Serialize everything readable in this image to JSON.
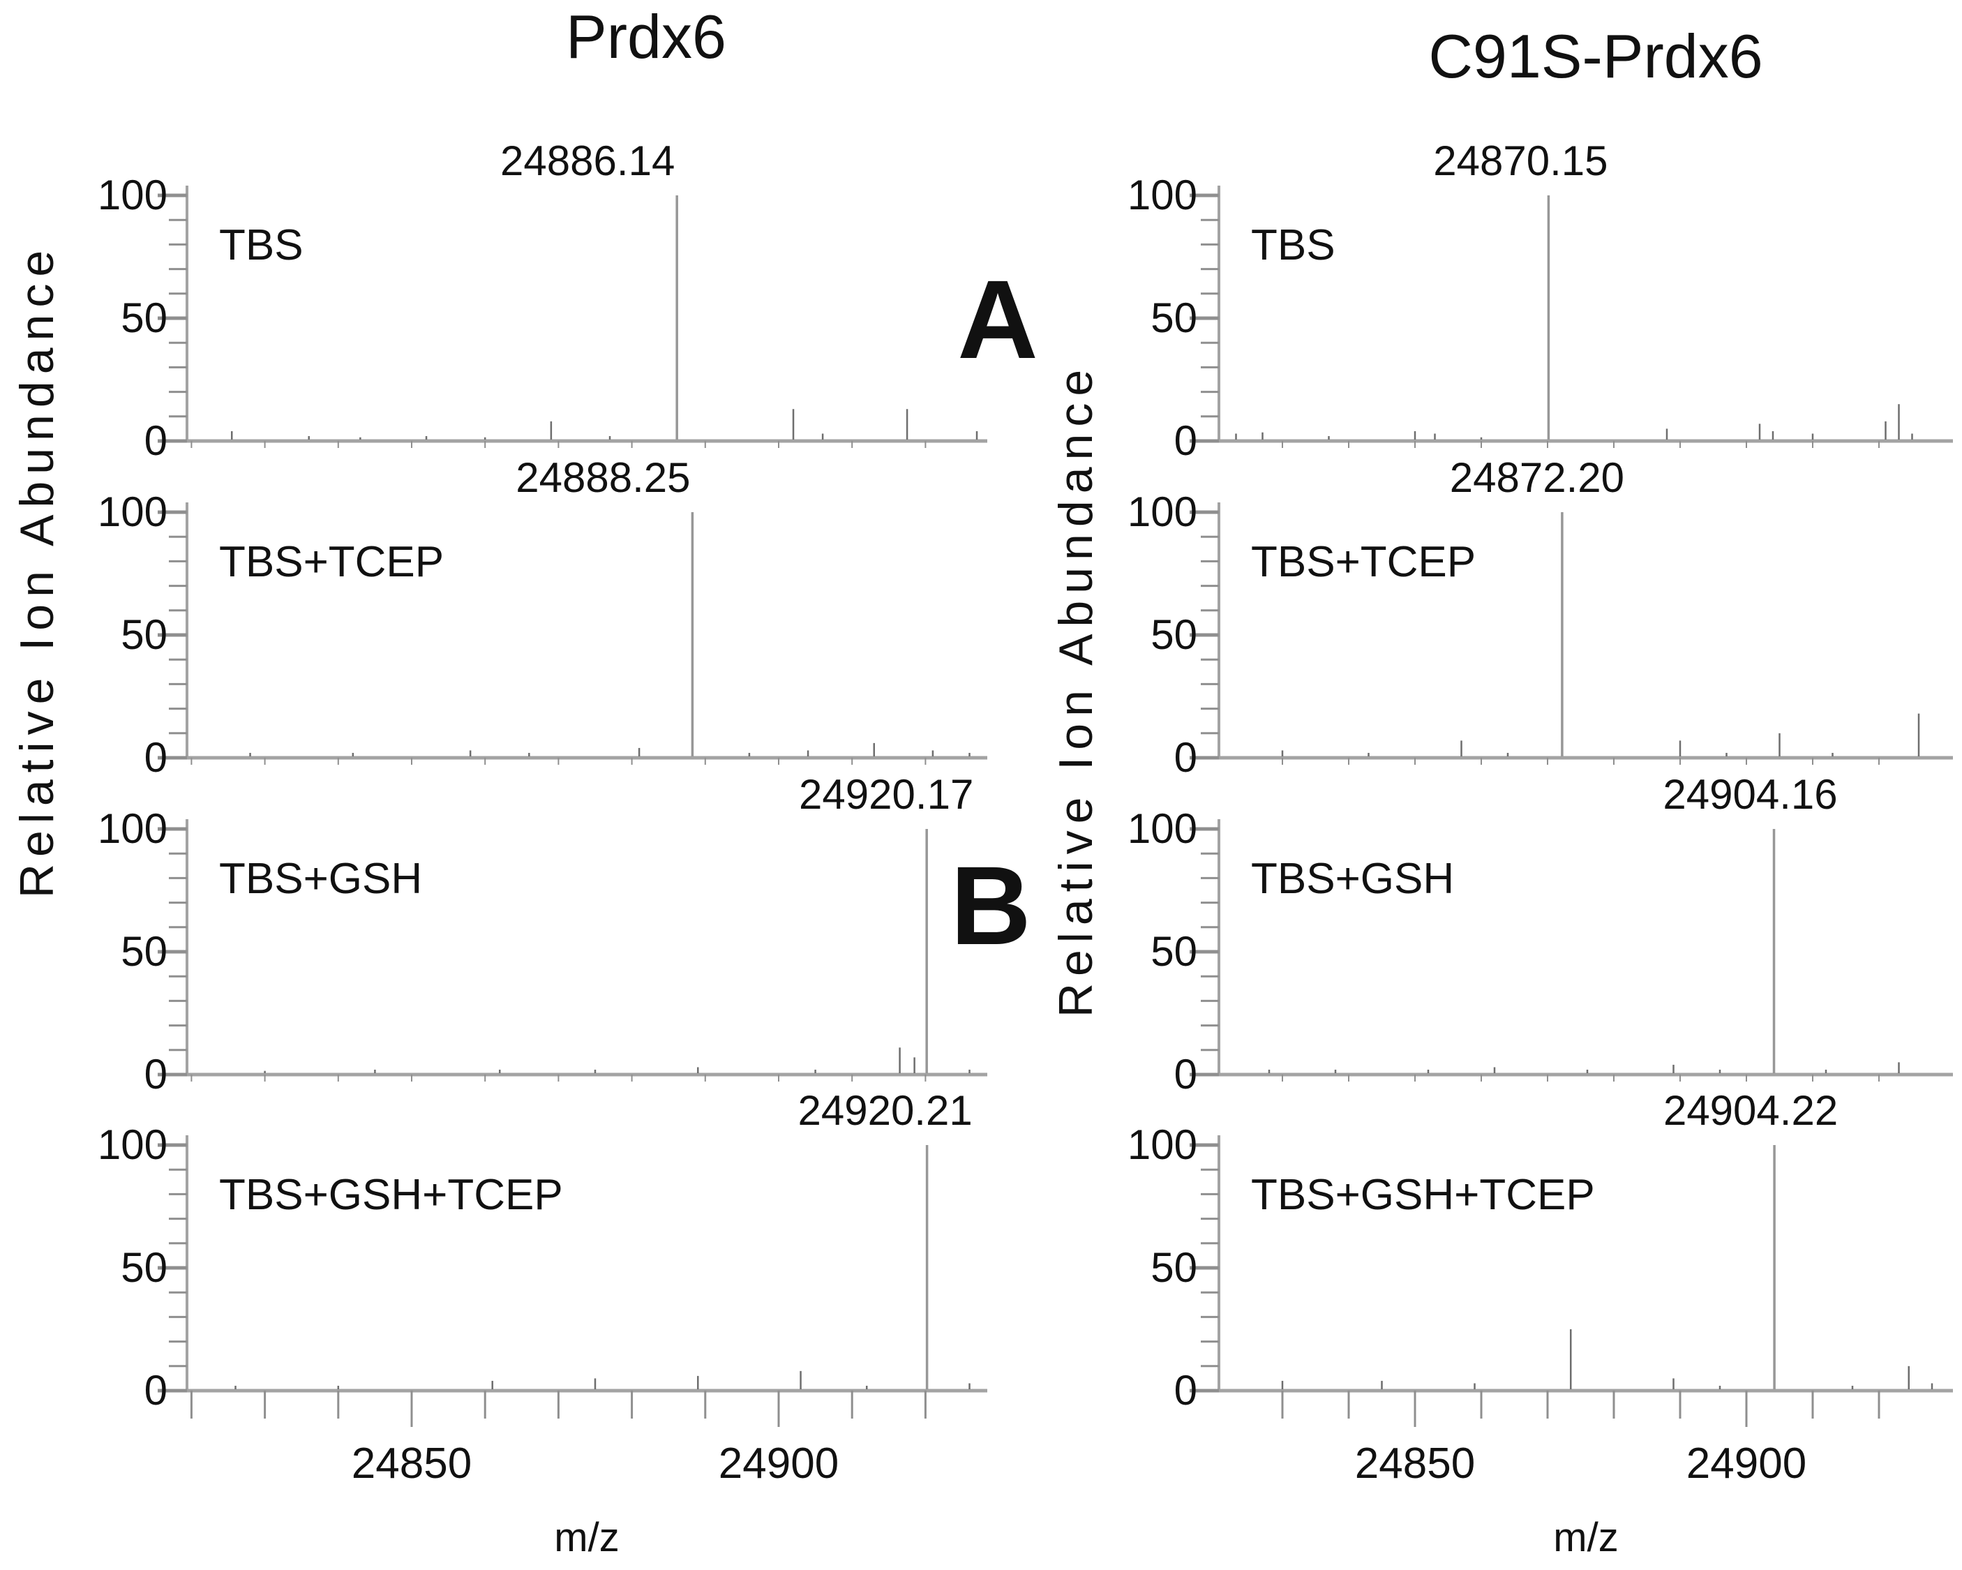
{
  "figure": {
    "left_title": "Prdx6",
    "right_title": "C91S-Prdx6",
    "panel_letter_a": "A",
    "panel_letter_b": "B",
    "y_axis_label": "Relative Ion Abundance",
    "x_axis_label": "m/z",
    "y_tick_labels": [
      "100",
      "50",
      "0"
    ],
    "x_tick_labels": [
      "24850",
      "24900"
    ],
    "colors": {
      "axis": "#a3a3a3",
      "tick": "#8f8f8f",
      "main_peak": "#979797",
      "minor_peak": "#6e6e6e",
      "text": "#111111"
    }
  },
  "chart_data": [
    {
      "type": "line",
      "column": "Prdx6",
      "condition": "TBS",
      "xlabel": "m/z",
      "ylabel": "Relative Ion Abundance",
      "xlim": [
        24819,
        24929
      ],
      "ylim": [
        0,
        100
      ],
      "xticks": [
        24850,
        24900
      ],
      "yticks": [
        0,
        50,
        100
      ],
      "main_peak": {
        "mz": 24886.14,
        "intensity": 100,
        "label": "24886.14"
      },
      "peaks": [
        [
          24825.5,
          4
        ],
        [
          24836,
          2
        ],
        [
          24843,
          1.5
        ],
        [
          24852,
          2
        ],
        [
          24860,
          1.5
        ],
        [
          24869,
          8
        ],
        [
          24877,
          2
        ],
        [
          24886.14,
          100
        ],
        [
          24902,
          13
        ],
        [
          24906,
          3
        ],
        [
          24917.5,
          13
        ],
        [
          24927,
          4
        ]
      ]
    },
    {
      "type": "line",
      "column": "Prdx6",
      "condition": "TBS+TCEP",
      "xlabel": "m/z",
      "ylabel": "Relative Ion Abundance",
      "xlim": [
        24819,
        24929
      ],
      "ylim": [
        0,
        100
      ],
      "xticks": [
        24850,
        24900
      ],
      "yticks": [
        0,
        50,
        100
      ],
      "main_peak": {
        "mz": 24888.25,
        "intensity": 100,
        "label": "24888.25"
      },
      "peaks": [
        [
          24828,
          2
        ],
        [
          24842,
          2
        ],
        [
          24858,
          3
        ],
        [
          24866,
          2
        ],
        [
          24881,
          4
        ],
        [
          24888.25,
          100
        ],
        [
          24896,
          2
        ],
        [
          24904,
          3
        ],
        [
          24913,
          6
        ],
        [
          24921,
          3
        ],
        [
          24926,
          2
        ]
      ]
    },
    {
      "type": "line",
      "column": "Prdx6",
      "condition": "TBS+GSH",
      "xlabel": "m/z",
      "ylabel": "Relative Ion Abundance",
      "xlim": [
        24819,
        24929
      ],
      "ylim": [
        0,
        100
      ],
      "xticks": [
        24850,
        24900
      ],
      "yticks": [
        0,
        50,
        100
      ],
      "main_peak": {
        "mz": 24920.17,
        "intensity": 100,
        "label": "24920.17"
      },
      "peaks": [
        [
          24830,
          1.5
        ],
        [
          24845,
          2
        ],
        [
          24862,
          2
        ],
        [
          24875,
          2
        ],
        [
          24889,
          3
        ],
        [
          24905,
          2
        ],
        [
          24916.5,
          11
        ],
        [
          24918.5,
          7
        ],
        [
          24920.17,
          100
        ],
        [
          24926,
          2
        ]
      ]
    },
    {
      "type": "line",
      "column": "Prdx6",
      "condition": "TBS+GSH+TCEP",
      "xlabel": "m/z",
      "ylabel": "Relative Ion Abundance",
      "xlim": [
        24819,
        24929
      ],
      "ylim": [
        0,
        100
      ],
      "xticks": [
        24850,
        24900
      ],
      "yticks": [
        0,
        50,
        100
      ],
      "main_peak": {
        "mz": 24920.21,
        "intensity": 100,
        "label": "24920.21"
      },
      "peaks": [
        [
          24826,
          2
        ],
        [
          24840,
          2
        ],
        [
          24861,
          4
        ],
        [
          24875,
          5
        ],
        [
          24889,
          6
        ],
        [
          24903,
          8
        ],
        [
          24912,
          2
        ],
        [
          24920.21,
          100
        ],
        [
          24926,
          3
        ]
      ]
    },
    {
      "type": "line",
      "column": "C91S-Prdx6",
      "condition": "TBS",
      "xlabel": "m/z",
      "ylabel": "Relative Ion Abundance",
      "xlim": [
        24820,
        24931
      ],
      "ylim": [
        0,
        100
      ],
      "xticks": [
        24850,
        24900
      ],
      "yticks": [
        0,
        50,
        100
      ],
      "main_peak": {
        "mz": 24870.15,
        "intensity": 100,
        "label": "24870.15"
      },
      "peaks": [
        [
          24823,
          3
        ],
        [
          24827,
          3.5
        ],
        [
          24837,
          2
        ],
        [
          24850,
          4
        ],
        [
          24853,
          3
        ],
        [
          24860,
          1.5
        ],
        [
          24870.15,
          100
        ],
        [
          24888,
          5
        ],
        [
          24902,
          7
        ],
        [
          24904,
          4
        ],
        [
          24910,
          3
        ],
        [
          24921,
          8
        ],
        [
          24923,
          15
        ],
        [
          24925,
          3
        ]
      ]
    },
    {
      "type": "line",
      "column": "C91S-Prdx6",
      "condition": "TBS+TCEP",
      "xlabel": "m/z",
      "ylabel": "Relative Ion Abundance",
      "xlim": [
        24820,
        24931
      ],
      "ylim": [
        0,
        100
      ],
      "xticks": [
        24850,
        24900
      ],
      "yticks": [
        0,
        50,
        100
      ],
      "main_peak": {
        "mz": 24872.2,
        "intensity": 100,
        "label": "24872.20"
      },
      "peaks": [
        [
          24830,
          3
        ],
        [
          24843,
          2
        ],
        [
          24857,
          7
        ],
        [
          24864,
          2
        ],
        [
          24872.2,
          100
        ],
        [
          24890,
          7
        ],
        [
          24897,
          2
        ],
        [
          24905,
          10
        ],
        [
          24913,
          2
        ],
        [
          24926,
          18
        ]
      ]
    },
    {
      "type": "line",
      "column": "C91S-Prdx6",
      "condition": "TBS+GSH",
      "xlabel": "m/z",
      "ylabel": "Relative Ion Abundance",
      "xlim": [
        24820,
        24931
      ],
      "ylim": [
        0,
        100
      ],
      "xticks": [
        24850,
        24900
      ],
      "yticks": [
        0,
        50,
        100
      ],
      "main_peak": {
        "mz": 24904.16,
        "intensity": 100,
        "label": "24904.16"
      },
      "peaks": [
        [
          24828,
          2
        ],
        [
          24838,
          2
        ],
        [
          24852,
          2
        ],
        [
          24862,
          3
        ],
        [
          24876,
          2
        ],
        [
          24889,
          4
        ],
        [
          24896,
          2
        ],
        [
          24904.16,
          100
        ],
        [
          24912,
          2
        ],
        [
          24923,
          5
        ]
      ]
    },
    {
      "type": "line",
      "column": "C91S-Prdx6",
      "condition": "TBS+GSH+TCEP",
      "xlabel": "m/z",
      "ylabel": "Relative Ion Abundance",
      "xlim": [
        24820,
        24931
      ],
      "ylim": [
        0,
        100
      ],
      "xticks": [
        24850,
        24900
      ],
      "yticks": [
        0,
        50,
        100
      ],
      "main_peak": {
        "mz": 24904.22,
        "intensity": 100,
        "label": "24904.22"
      },
      "peaks": [
        [
          24830,
          4
        ],
        [
          24845,
          4
        ],
        [
          24859,
          3
        ],
        [
          24873.5,
          25
        ],
        [
          24889,
          5
        ],
        [
          24896,
          2
        ],
        [
          24904.22,
          100
        ],
        [
          24916,
          2
        ],
        [
          24924.5,
          10
        ],
        [
          24928,
          3
        ]
      ]
    }
  ]
}
